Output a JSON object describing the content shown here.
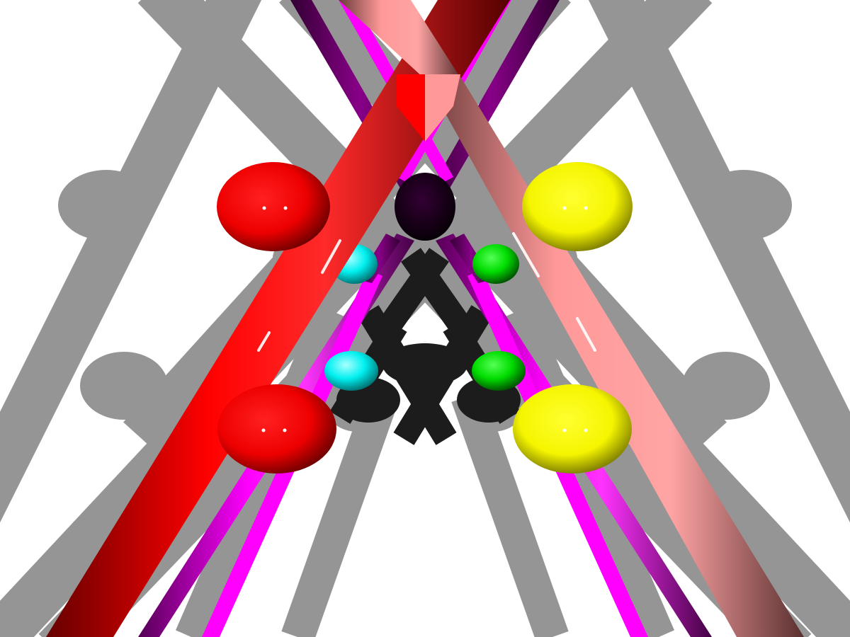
{
  "scene": {
    "background_color": "#ffffff",
    "shadow_color": "#959595",
    "dark_shadow_color": "#1c1c1c",
    "colors": {
      "red": "#ff0000",
      "pink": "#ff9999",
      "magenta": "#ff00ff",
      "dark_magenta": "#880088",
      "yellow": "#ffff00",
      "cyan": "#00ffff",
      "green": "#00ee00",
      "dark_purple": "#220022"
    },
    "objects": [
      "red-rod",
      "pink-rod",
      "magenta-rods",
      "red-ellipsoids",
      "yellow-ellipsoids",
      "cyan-spheres",
      "green-spheres",
      "dark-purple-sphere"
    ]
  }
}
